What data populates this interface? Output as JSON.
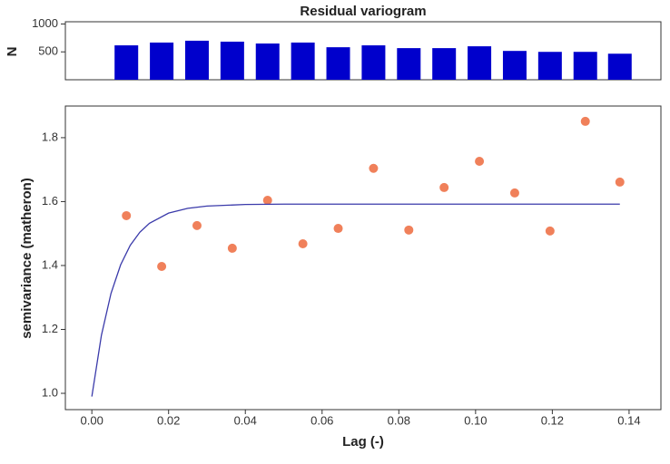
{
  "chart_data": [
    {
      "type": "bar",
      "title": "Residual variogram",
      "y_label": "N",
      "x": [
        0.009,
        0.0182,
        0.0274,
        0.0366,
        0.0458,
        0.055,
        0.0642,
        0.0734,
        0.0826,
        0.0918,
        0.101,
        0.1102,
        0.1194,
        0.1286,
        0.1376
      ],
      "values": [
        617,
        667,
        700,
        683,
        650,
        667,
        583,
        617,
        567,
        567,
        600,
        517,
        500,
        500,
        467
      ],
      "color": "#0000cc",
      "xlim": [
        -0.0069,
        0.1483
      ],
      "ylim": [
        0,
        1040
      ],
      "yticks": [
        500,
        1000
      ]
    },
    {
      "type": "scatter",
      "x_label": "Lag (-)",
      "y_label": "semivariance (matheron)",
      "xlim": [
        -0.0069,
        0.1483
      ],
      "ylim": [
        0.949,
        1.899
      ],
      "xticks": [
        {
          "value": 0,
          "label": "0.00"
        },
        0.02,
        0.04,
        0.06,
        0.08,
        {
          "value": 0.1,
          "label": "0.10"
        },
        0.12,
        0.14
      ],
      "yticks": [
        {
          "value": 1,
          "label": "1.0"
        },
        1.2,
        1.4,
        1.6,
        1.8
      ],
      "series": [
        {
          "type": "scatter",
          "color": "#f0805a",
          "x": [
            0.009,
            0.0182,
            0.0274,
            0.0366,
            0.0458,
            0.055,
            0.0642,
            0.0734,
            0.0826,
            0.0918,
            0.101,
            0.1102,
            0.1194,
            0.1286,
            0.1376
          ],
          "values": [
            1.556,
            1.397,
            1.525,
            1.454,
            1.604,
            1.468,
            1.516,
            1.704,
            1.511,
            1.644,
            1.726,
            1.627,
            1.508,
            1.851,
            1.661
          ]
        },
        {
          "type": "line",
          "color": "#3a3aaa",
          "x": [
            0,
            0.0025,
            0.005,
            0.0075,
            0.01,
            0.0125,
            0.015,
            0.02,
            0.025,
            0.03,
            0.04,
            0.05,
            0.1376
          ],
          "values": [
            0.99,
            1.182,
            1.313,
            1.402,
            1.463,
            1.504,
            1.532,
            1.564,
            1.579,
            1.586,
            1.591,
            1.592,
            1.592
          ]
        }
      ]
    }
  ]
}
